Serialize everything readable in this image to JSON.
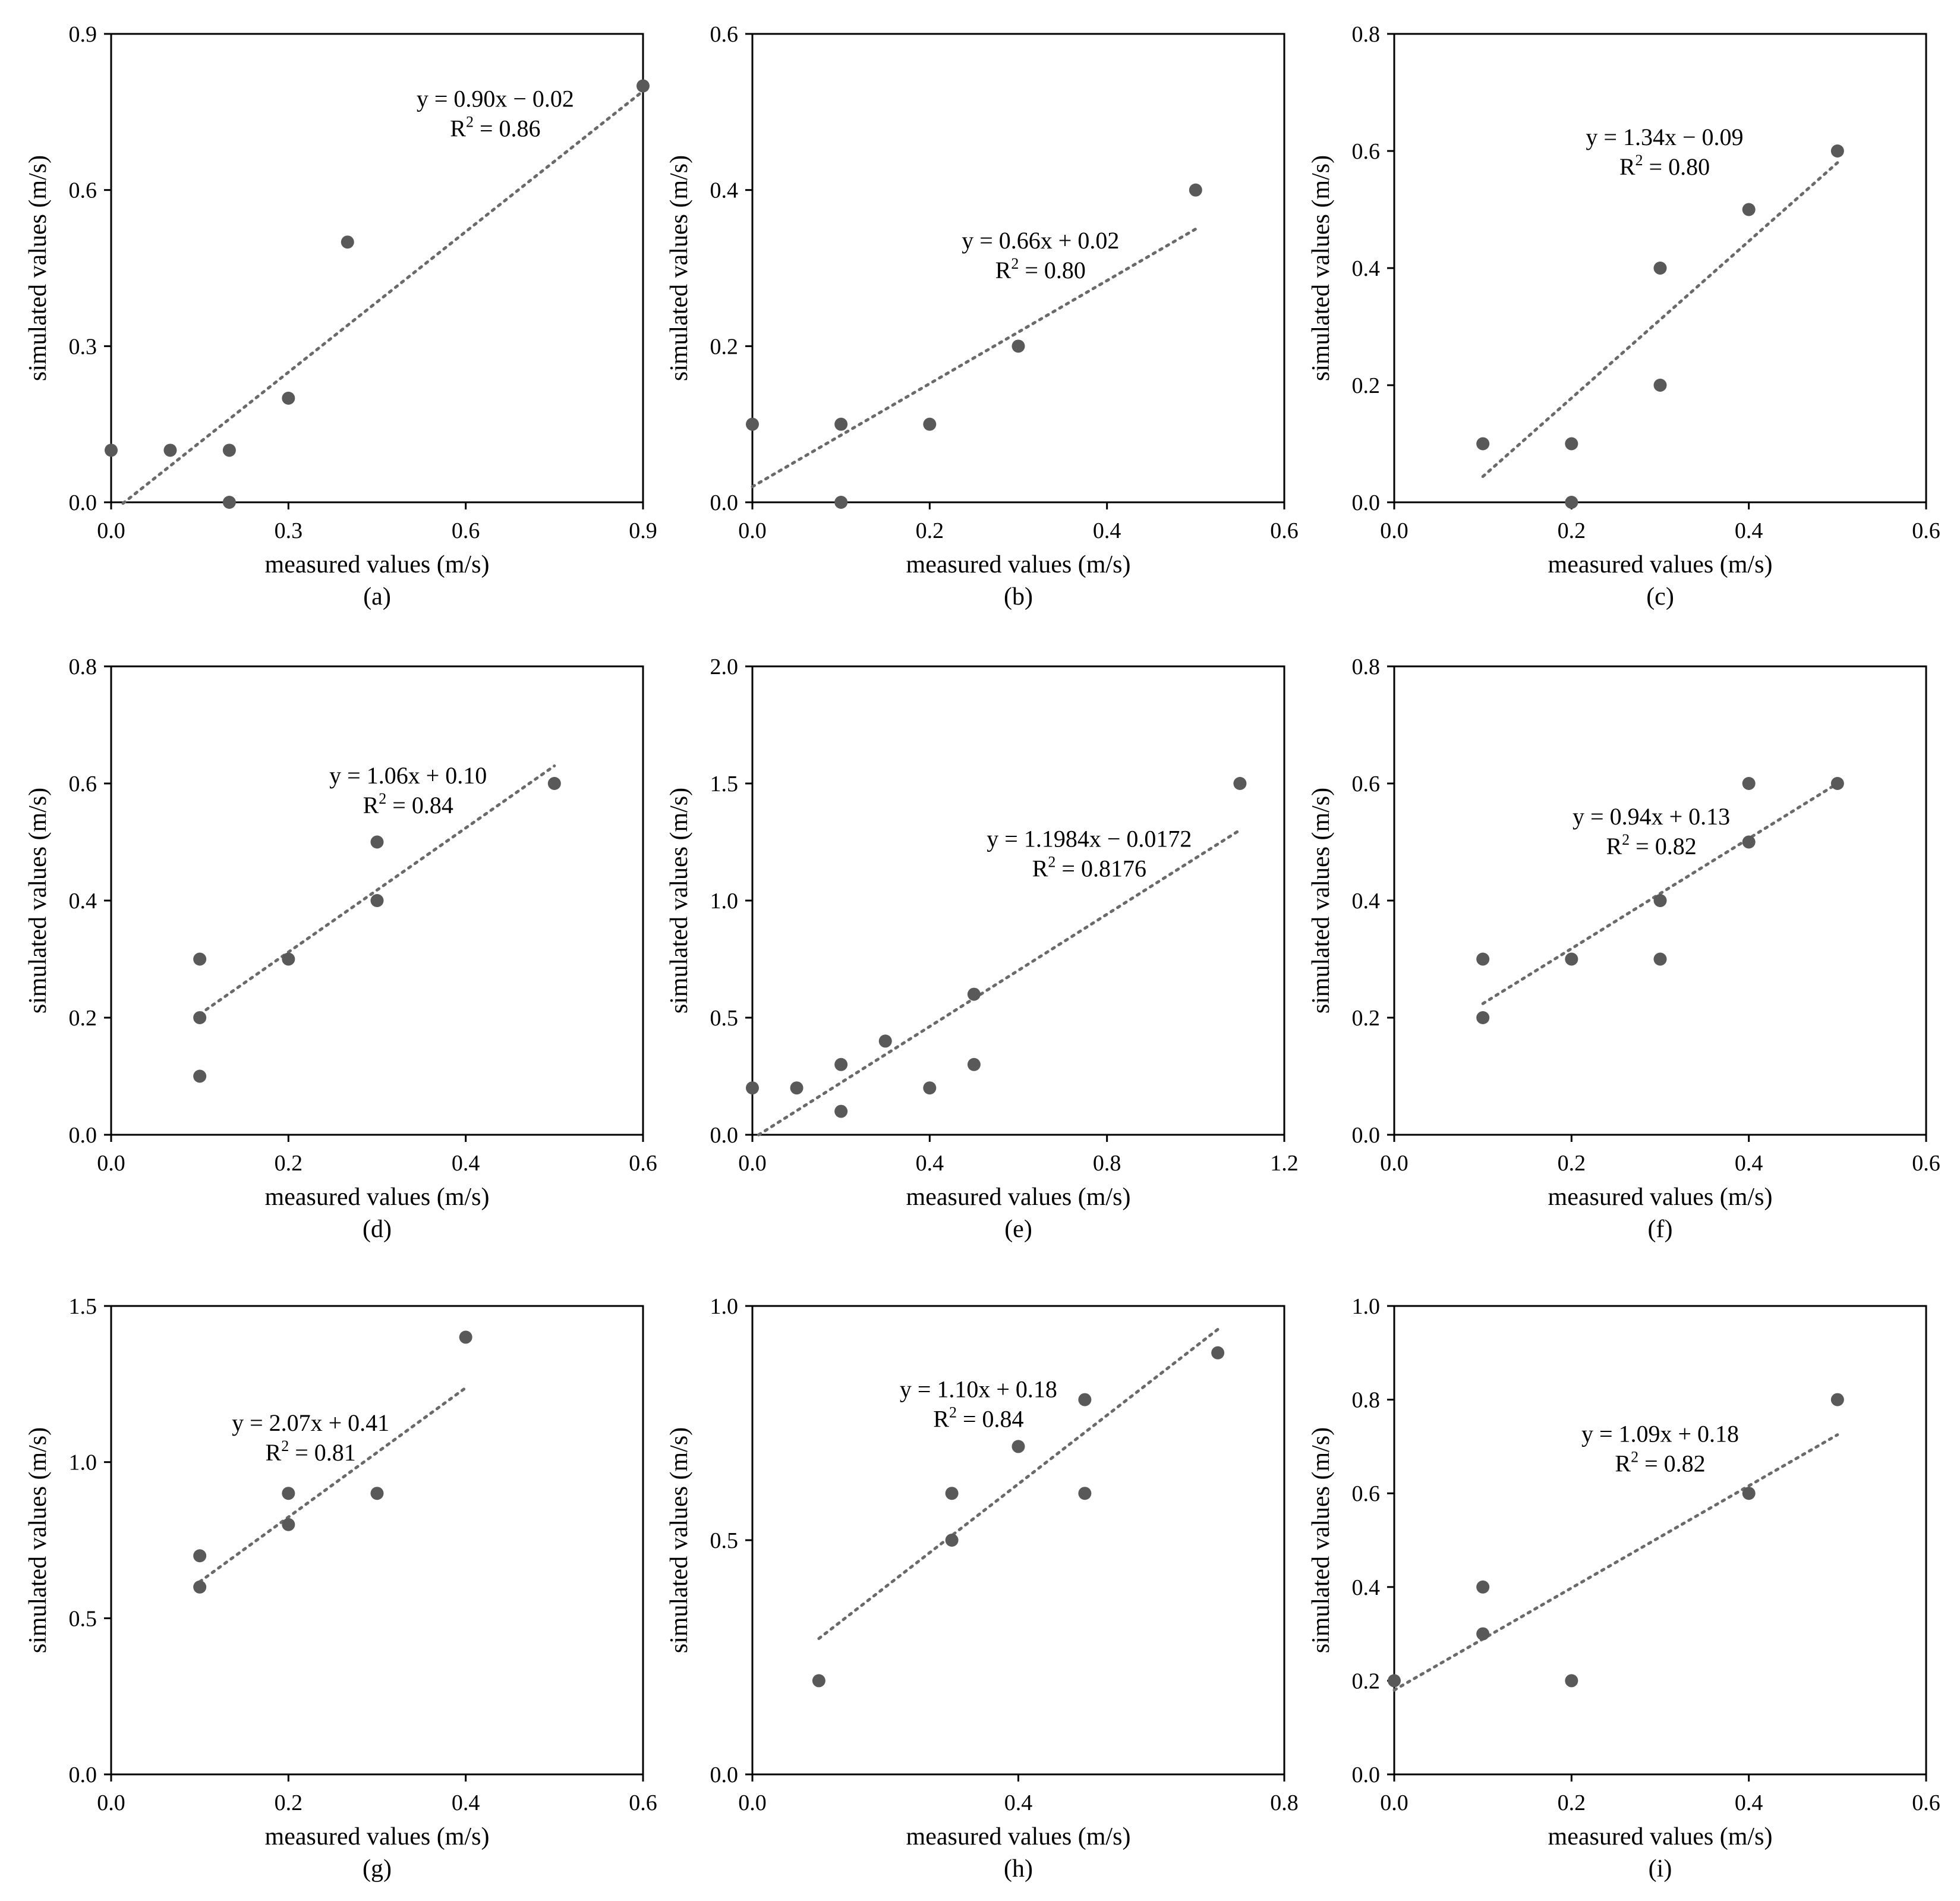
{
  "colors": {
    "point": "#595959",
    "trendline": "#6a6a6a",
    "axis": "#000000"
  },
  "chart_data": [
    {
      "type": "scatter",
      "caption": "(a)",
      "xlabel": "measured values (m/s)",
      "ylabel": "simulated values (m/s)",
      "xlim": [
        0,
        0.9
      ],
      "ylim": [
        0,
        0.9
      ],
      "xticks": [
        0,
        0.3,
        0.6,
        0.9
      ],
      "xtick_labels": [
        "0.0",
        "0.3",
        "0.6",
        "0.9"
      ],
      "yticks": [
        0,
        0.3,
        0.6,
        0.9
      ],
      "ytick_labels": [
        "0.0",
        "0.3",
        "0.6",
        "0.9"
      ],
      "points": [
        [
          0,
          0.1
        ],
        [
          0.1,
          0.1
        ],
        [
          0.2,
          0.1
        ],
        [
          0.2,
          0
        ],
        [
          0.3,
          0.2
        ],
        [
          0.4,
          0.5
        ],
        [
          0.9,
          0.8
        ]
      ],
      "trendline": {
        "slope": 0.9,
        "intercept": -0.02,
        "x_range": [
          0.02,
          0.9
        ]
      },
      "equation": "y = 0.90x − 0.02",
      "r2_prefix": "R",
      "r2_sup": "2",
      "r2_value": " = 0.86",
      "eq_anchor": [
        0.65,
        0.76
      ]
    },
    {
      "type": "scatter",
      "caption": "(b)",
      "xlabel": "measured values (m/s)",
      "ylabel": "simulated values (m/s)",
      "xlim": [
        0,
        0.6
      ],
      "ylim": [
        0,
        0.6
      ],
      "xticks": [
        0,
        0.2,
        0.4,
        0.6
      ],
      "xtick_labels": [
        "0.0",
        "0.2",
        "0.4",
        "0.6"
      ],
      "yticks": [
        0,
        0.2,
        0.4,
        0.6
      ],
      "ytick_labels": [
        "0.0",
        "0.2",
        "0.4",
        "0.6"
      ],
      "points": [
        [
          0,
          0.1
        ],
        [
          0.1,
          0.1
        ],
        [
          0.1,
          0
        ],
        [
          0.2,
          0.1
        ],
        [
          0.3,
          0.2
        ],
        [
          0.5,
          0.4
        ]
      ],
      "trendline": {
        "slope": 0.66,
        "intercept": 0.02,
        "x_range": [
          0,
          0.5
        ]
      },
      "equation": "y = 0.66x + 0.02",
      "r2_prefix": "R",
      "r2_sup": "2",
      "r2_value": " = 0.80",
      "eq_anchor": [
        0.325,
        0.325
      ]
    },
    {
      "type": "scatter",
      "caption": "(c)",
      "xlabel": "measured values (m/s)",
      "ylabel": "simulated values (m/s)",
      "xlim": [
        0,
        0.6
      ],
      "ylim": [
        0,
        0.8
      ],
      "xticks": [
        0,
        0.2,
        0.4,
        0.6
      ],
      "xtick_labels": [
        "0.0",
        "0.2",
        "0.4",
        "0.6"
      ],
      "yticks": [
        0,
        0.2,
        0.4,
        0.6,
        0.8
      ],
      "ytick_labels": [
        "0.0",
        "0.2",
        "0.4",
        "0.6",
        "0.8"
      ],
      "points": [
        [
          0.1,
          0.1
        ],
        [
          0.2,
          0.1
        ],
        [
          0.2,
          0
        ],
        [
          0.3,
          0.2
        ],
        [
          0.3,
          0.4
        ],
        [
          0.4,
          0.5
        ],
        [
          0.5,
          0.6
        ]
      ],
      "trendline": {
        "slope": 1.34,
        "intercept": -0.09,
        "x_range": [
          0.1,
          0.5
        ]
      },
      "equation": "y = 1.34x − 0.09",
      "r2_prefix": "R",
      "r2_sup": "2",
      "r2_value": " = 0.80",
      "eq_anchor": [
        0.305,
        0.61
      ]
    },
    {
      "type": "scatter",
      "caption": "(d)",
      "xlabel": "measured values (m/s)",
      "ylabel": "simulated values (m/s)",
      "xlim": [
        0,
        0.6
      ],
      "ylim": [
        0,
        0.8
      ],
      "xticks": [
        0,
        0.2,
        0.4,
        0.6
      ],
      "xtick_labels": [
        "0.0",
        "0.2",
        "0.4",
        "0.6"
      ],
      "yticks": [
        0,
        0.2,
        0.4,
        0.6,
        0.8
      ],
      "ytick_labels": [
        "0.0",
        "0.2",
        "0.4",
        "0.6",
        "0.8"
      ],
      "points": [
        [
          0.1,
          0.3
        ],
        [
          0.1,
          0.2
        ],
        [
          0.1,
          0.1
        ],
        [
          0.2,
          0.3
        ],
        [
          0.3,
          0.5
        ],
        [
          0.3,
          0.4
        ],
        [
          0.5,
          0.6
        ]
      ],
      "trendline": {
        "slope": 1.06,
        "intercept": 0.1,
        "x_range": [
          0.1,
          0.5
        ]
      },
      "equation": "y = 1.06x + 0.10",
      "r2_prefix": "R",
      "r2_sup": "2",
      "r2_value": " = 0.84",
      "eq_anchor": [
        0.335,
        0.6
      ]
    },
    {
      "type": "scatter",
      "caption": "(e)",
      "xlabel": "measured values (m/s)",
      "ylabel": "simulated values (m/s)",
      "xlim": [
        0,
        1.2
      ],
      "ylim": [
        0,
        2.0
      ],
      "xticks": [
        0,
        0.4,
        0.8,
        1.2
      ],
      "xtick_labels": [
        "0.0",
        "0.4",
        "0.8",
        "1.2"
      ],
      "yticks": [
        0,
        0.5,
        1.0,
        1.5,
        2.0
      ],
      "ytick_labels": [
        "0.0",
        "0.5",
        "1.0",
        "1.5",
        "2.0"
      ],
      "points": [
        [
          0,
          0.2
        ],
        [
          0.1,
          0.2
        ],
        [
          0.2,
          0.3
        ],
        [
          0.2,
          0.1
        ],
        [
          0.3,
          0.4
        ],
        [
          0.4,
          0.2
        ],
        [
          0.5,
          0.6
        ],
        [
          0.5,
          0.3
        ],
        [
          1.1,
          1.5
        ]
      ],
      "trendline": {
        "slope": 1.1984,
        "intercept": -0.0172,
        "x_range": [
          0.014,
          1.1
        ]
      },
      "equation": "y = 1.1984x − 0.0172",
      "r2_prefix": "R",
      "r2_sup": "2",
      "r2_value": " = 0.8176",
      "eq_anchor": [
        0.76,
        1.23
      ]
    },
    {
      "type": "scatter",
      "caption": "(f)",
      "xlabel": "measured values (m/s)",
      "ylabel": "simulated values (m/s)",
      "xlim": [
        0,
        0.6
      ],
      "ylim": [
        0,
        0.8
      ],
      "xticks": [
        0,
        0.2,
        0.4,
        0.6
      ],
      "xtick_labels": [
        "0.0",
        "0.2",
        "0.4",
        "0.6"
      ],
      "yticks": [
        0,
        0.2,
        0.4,
        0.6,
        0.8
      ],
      "ytick_labels": [
        "0.0",
        "0.2",
        "0.4",
        "0.6",
        "0.8"
      ],
      "points": [
        [
          0.1,
          0.3
        ],
        [
          0.1,
          0.2
        ],
        [
          0.2,
          0.3
        ],
        [
          0.3,
          0.4
        ],
        [
          0.3,
          0.3
        ],
        [
          0.4,
          0.6
        ],
        [
          0.4,
          0.5
        ],
        [
          0.5,
          0.6
        ]
      ],
      "trendline": {
        "slope": 0.94,
        "intercept": 0.13,
        "x_range": [
          0.1,
          0.5
        ]
      },
      "equation": "y = 0.94x + 0.13",
      "r2_prefix": "R",
      "r2_sup": "2",
      "r2_value": " = 0.82",
      "eq_anchor": [
        0.29,
        0.53
      ]
    },
    {
      "type": "scatter",
      "caption": "(g)",
      "xlabel": "measured values (m/s)",
      "ylabel": "simulated values (m/s)",
      "xlim": [
        0,
        0.6
      ],
      "ylim": [
        0,
        1.5
      ],
      "xticks": [
        0,
        0.2,
        0.4,
        0.6
      ],
      "xtick_labels": [
        "0.0",
        "0.2",
        "0.4",
        "0.6"
      ],
      "yticks": [
        0,
        0.5,
        1.0,
        1.5
      ],
      "ytick_labels": [
        "0.0",
        "0.5",
        "1.0",
        "1.5"
      ],
      "points": [
        [
          0.1,
          0.7
        ],
        [
          0.1,
          0.6
        ],
        [
          0.2,
          0.9
        ],
        [
          0.2,
          0.8
        ],
        [
          0.3,
          0.9
        ],
        [
          0.4,
          1.4
        ]
      ],
      "trendline": {
        "slope": 2.07,
        "intercept": 0.41,
        "x_range": [
          0.1,
          0.4
        ]
      },
      "equation": "y = 2.07x + 0.41",
      "r2_prefix": "R",
      "r2_sup": "2",
      "r2_value": " = 0.81",
      "eq_anchor": [
        0.225,
        1.1
      ]
    },
    {
      "type": "scatter",
      "caption": "(h)",
      "xlabel": "measured values (m/s)",
      "ylabel": "simulated values (m/s)",
      "xlim": [
        0,
        0.8
      ],
      "ylim": [
        0,
        1.0
      ],
      "xticks": [
        0,
        0.4,
        0.8
      ],
      "xtick_labels": [
        "0.0",
        "0.4",
        "0.8"
      ],
      "yticks": [
        0,
        0.5,
        1.0
      ],
      "ytick_labels": [
        "0.0",
        "0.5",
        "1.0"
      ],
      "points": [
        [
          0.1,
          0.2
        ],
        [
          0.3,
          0.6
        ],
        [
          0.3,
          0.5
        ],
        [
          0.4,
          0.7
        ],
        [
          0.5,
          0.8
        ],
        [
          0.5,
          0.6
        ],
        [
          0.7,
          0.9
        ]
      ],
      "trendline": {
        "slope": 1.1,
        "intercept": 0.18,
        "x_range": [
          0.1,
          0.7
        ]
      },
      "equation": "y = 1.10x + 0.18",
      "r2_prefix": "R",
      "r2_sup": "2",
      "r2_value": " = 0.84",
      "eq_anchor": [
        0.34,
        0.805
      ]
    },
    {
      "type": "scatter",
      "caption": "(i)",
      "xlabel": "measured values (m/s)",
      "ylabel": "simulated values (m/s)",
      "xlim": [
        0,
        0.6
      ],
      "ylim": [
        0,
        1.0
      ],
      "xticks": [
        0,
        0.2,
        0.4,
        0.6
      ],
      "xtick_labels": [
        "0.0",
        "0.2",
        "0.4",
        "0.6"
      ],
      "yticks": [
        0,
        0.2,
        0.4,
        0.6,
        0.8,
        1.0
      ],
      "ytick_labels": [
        "0.0",
        "0.2",
        "0.4",
        "0.6",
        "0.8",
        "1.0"
      ],
      "points": [
        [
          0,
          0.2
        ],
        [
          0.1,
          0.4
        ],
        [
          0.1,
          0.3
        ],
        [
          0.2,
          0.2
        ],
        [
          0.4,
          0.6
        ],
        [
          0.5,
          0.8
        ]
      ],
      "trendline": {
        "slope": 1.09,
        "intercept": 0.18,
        "x_range": [
          0,
          0.5
        ]
      },
      "equation": "y = 1.09x + 0.18",
      "r2_prefix": "R",
      "r2_sup": "2",
      "r2_value": " = 0.82",
      "eq_anchor": [
        0.3,
        0.71
      ]
    }
  ]
}
